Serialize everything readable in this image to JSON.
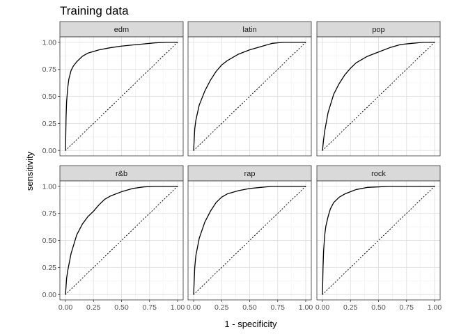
{
  "chart_data": {
    "type": "line",
    "title": "Training data",
    "xlabel": "1 - specificity",
    "ylabel": "sensitivity",
    "xlim": [
      0,
      1
    ],
    "ylim": [
      0,
      1
    ],
    "x_ticks": [
      0.0,
      0.25,
      0.5,
      0.75,
      1.0
    ],
    "y_ticks": [
      0.0,
      0.25,
      0.5,
      0.75,
      1.0
    ],
    "x_tick_labels": [
      "0.00",
      "0.25",
      "0.50",
      "0.75",
      "1.00"
    ],
    "y_tick_labels": [
      "0.00",
      "0.25",
      "0.50",
      "0.75",
      "1.00"
    ],
    "grid": true,
    "reference_line": {
      "style": "dotted",
      "from": [
        0,
        0
      ],
      "to": [
        1,
        1
      ]
    },
    "facets": [
      {
        "label": "edm",
        "x": [
          0,
          0.005,
          0.01,
          0.02,
          0.03,
          0.05,
          0.07,
          0.1,
          0.15,
          0.2,
          0.3,
          0.4,
          0.5,
          0.6,
          0.7,
          0.8,
          0.9,
          1.0
        ],
        "y": [
          0,
          0.3,
          0.45,
          0.58,
          0.66,
          0.74,
          0.78,
          0.82,
          0.87,
          0.9,
          0.93,
          0.95,
          0.965,
          0.975,
          0.985,
          0.995,
          1.0,
          1.0
        ]
      },
      {
        "label": "latin",
        "x": [
          0,
          0.01,
          0.02,
          0.05,
          0.1,
          0.15,
          0.2,
          0.25,
          0.3,
          0.4,
          0.5,
          0.6,
          0.7,
          0.8,
          0.9,
          1.0
        ],
        "y": [
          0,
          0.2,
          0.28,
          0.42,
          0.55,
          0.65,
          0.73,
          0.79,
          0.83,
          0.89,
          0.93,
          0.96,
          0.99,
          1.0,
          1.0,
          1.0
        ]
      },
      {
        "label": "pop",
        "x": [
          0,
          0.01,
          0.02,
          0.05,
          0.1,
          0.15,
          0.2,
          0.25,
          0.3,
          0.4,
          0.5,
          0.6,
          0.7,
          0.8,
          0.9,
          1.0
        ],
        "y": [
          0,
          0.1,
          0.18,
          0.35,
          0.52,
          0.62,
          0.7,
          0.76,
          0.81,
          0.87,
          0.91,
          0.95,
          0.98,
          0.99,
          1.0,
          1.0
        ]
      },
      {
        "label": "r&b",
        "x": [
          0,
          0.01,
          0.02,
          0.05,
          0.1,
          0.15,
          0.2,
          0.25,
          0.3,
          0.35,
          0.4,
          0.5,
          0.6,
          0.7,
          0.8,
          0.9,
          1.0
        ],
        "y": [
          0,
          0.15,
          0.22,
          0.38,
          0.55,
          0.65,
          0.72,
          0.77,
          0.83,
          0.88,
          0.91,
          0.95,
          0.98,
          0.995,
          1.0,
          1.0,
          1.0
        ]
      },
      {
        "label": "rap",
        "x": [
          0,
          0.01,
          0.02,
          0.05,
          0.1,
          0.15,
          0.2,
          0.25,
          0.3,
          0.4,
          0.5,
          0.6,
          0.7,
          0.8,
          0.9,
          1.0
        ],
        "y": [
          0,
          0.25,
          0.36,
          0.52,
          0.67,
          0.77,
          0.85,
          0.9,
          0.93,
          0.96,
          0.98,
          0.99,
          1.0,
          1.0,
          1.0,
          1.0
        ]
      },
      {
        "label": "rock",
        "x": [
          0,
          0.005,
          0.01,
          0.02,
          0.03,
          0.05,
          0.07,
          0.1,
          0.15,
          0.2,
          0.3,
          0.4,
          0.5,
          0.6,
          0.7,
          0.8,
          0.9,
          1.0
        ],
        "y": [
          0,
          0.25,
          0.4,
          0.55,
          0.63,
          0.72,
          0.79,
          0.85,
          0.9,
          0.93,
          0.97,
          0.99,
          0.995,
          1.0,
          1.0,
          1.0,
          1.0,
          1.0
        ]
      }
    ]
  }
}
